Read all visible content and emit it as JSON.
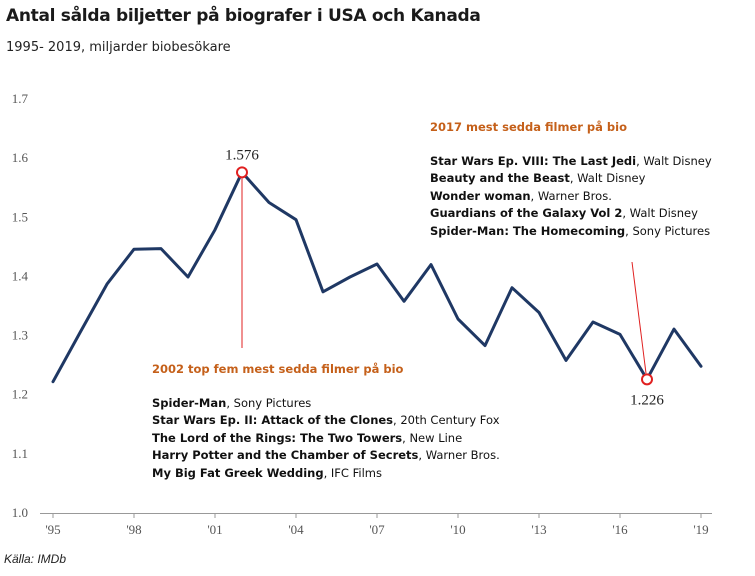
{
  "header": {
    "title": "Antal sålda biljetter på biografer i USA och Kanada",
    "subtitle": "1995- 2019, miljarder biobesökare"
  },
  "footer": {
    "source": "Källa: IMDb"
  },
  "colors": {
    "line": "#1f3864",
    "highlight": "#e02020",
    "annotation_heading": "#c5601a"
  },
  "chart_data": {
    "type": "line",
    "x": [
      1995,
      1996,
      1997,
      1998,
      1999,
      2000,
      2001,
      2002,
      2003,
      2004,
      2005,
      2006,
      2007,
      2008,
      2009,
      2010,
      2011,
      2012,
      2013,
      2014,
      2015,
      2016,
      2017,
      2018,
      2019
    ],
    "values": [
      1.222,
      1.305,
      1.387,
      1.446,
      1.447,
      1.399,
      1.479,
      1.576,
      1.525,
      1.496,
      1.374,
      1.399,
      1.421,
      1.358,
      1.42,
      1.328,
      1.283,
      1.381,
      1.339,
      1.258,
      1.323,
      1.302,
      1.226,
      1.311,
      1.248
    ],
    "xticks": [
      {
        "x": 1995,
        "label": "'95"
      },
      {
        "x": 1998,
        "label": "'98"
      },
      {
        "x": 2001,
        "label": "'01"
      },
      {
        "x": 2004,
        "label": "'04"
      },
      {
        "x": 2007,
        "label": "'07"
      },
      {
        "x": 2010,
        "label": "'10"
      },
      {
        "x": 2013,
        "label": "'13"
      },
      {
        "x": 2016,
        "label": "'16"
      },
      {
        "x": 2019,
        "label": "'19"
      }
    ],
    "yticks": [
      "1.0",
      "1.1",
      "1.2",
      "1.3",
      "1.4",
      "1.5",
      "1.6",
      "1.7"
    ],
    "ylim": [
      1.0,
      1.7
    ],
    "xlim": [
      1995,
      2019
    ],
    "grid": false,
    "highlights": [
      {
        "x": 2002,
        "value": 1.576,
        "label": "1.576"
      },
      {
        "x": 2017,
        "value": 1.226,
        "label": "1.226"
      }
    ],
    "annotations": [
      {
        "heading": "2002 top fem mest sedda filmer på bio",
        "films": [
          {
            "title": "Spider-Man",
            "studio": "Sony Pictures"
          },
          {
            "title": "Star Wars Ep. II: Attack of the Clones",
            "studio": "20th Century Fox"
          },
          {
            "title": "The Lord of the Rings: The Two Towers",
            "studio": "New Line"
          },
          {
            "title": "Harry Potter and the Chamber of Secrets",
            "studio": "Warner Bros."
          },
          {
            "title": "My Big Fat Greek Wedding",
            "studio": "IFC Films"
          }
        ]
      },
      {
        "heading": "2017 mest sedda filmer på bio",
        "films": [
          {
            "title": "Star Wars Ep. VIII: The Last Jedi",
            "studio": "Walt Disney"
          },
          {
            "title": "Beauty and the Beast",
            "studio": "Walt Disney"
          },
          {
            "title": "Wonder woman",
            "studio": "Warner Bros."
          },
          {
            "title": "Guardians of the Galaxy Vol 2",
            "studio": "Walt Disney"
          },
          {
            "title": "Spider-Man: The Homecoming",
            "studio": "Sony Pictures"
          }
        ]
      }
    ]
  }
}
